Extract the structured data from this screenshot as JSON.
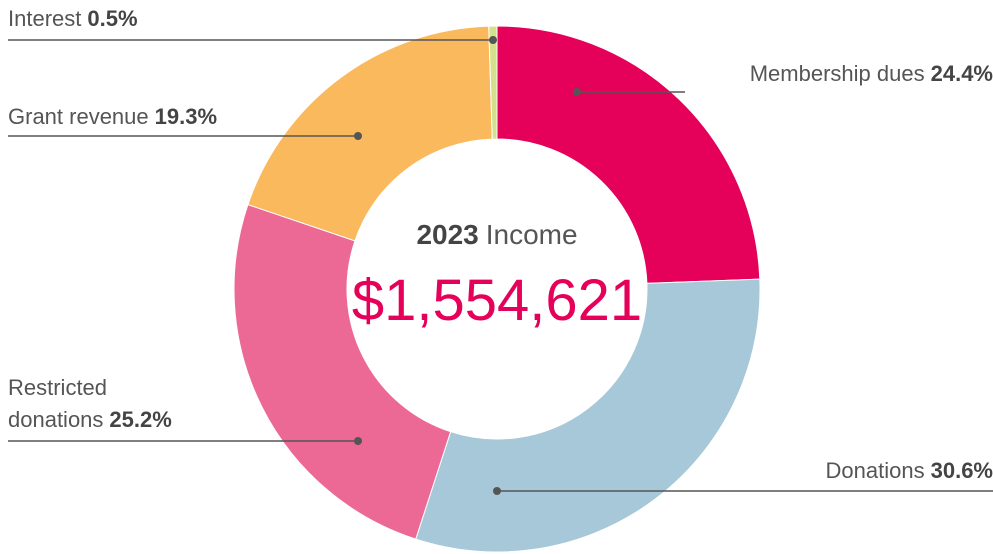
{
  "chart_data": {
    "type": "donut",
    "title": {
      "year": "2023",
      "text": "Income"
    },
    "total": {
      "value": 1554621,
      "label": "$1,554,621"
    },
    "categories": [
      "Membership dues",
      "Donations",
      "Restricted donations",
      "Grant revenue",
      "Interest"
    ],
    "values": [
      24.4,
      30.6,
      25.2,
      19.3,
      0.5
    ],
    "value_labels": [
      "24.4%",
      "30.6%",
      "25.2%",
      "19.3%",
      "0.5%"
    ],
    "colors": [
      "#e5005a",
      "#a7c8d8",
      "#ec6996",
      "#f9b95c",
      "#d5e08c"
    ]
  }
}
